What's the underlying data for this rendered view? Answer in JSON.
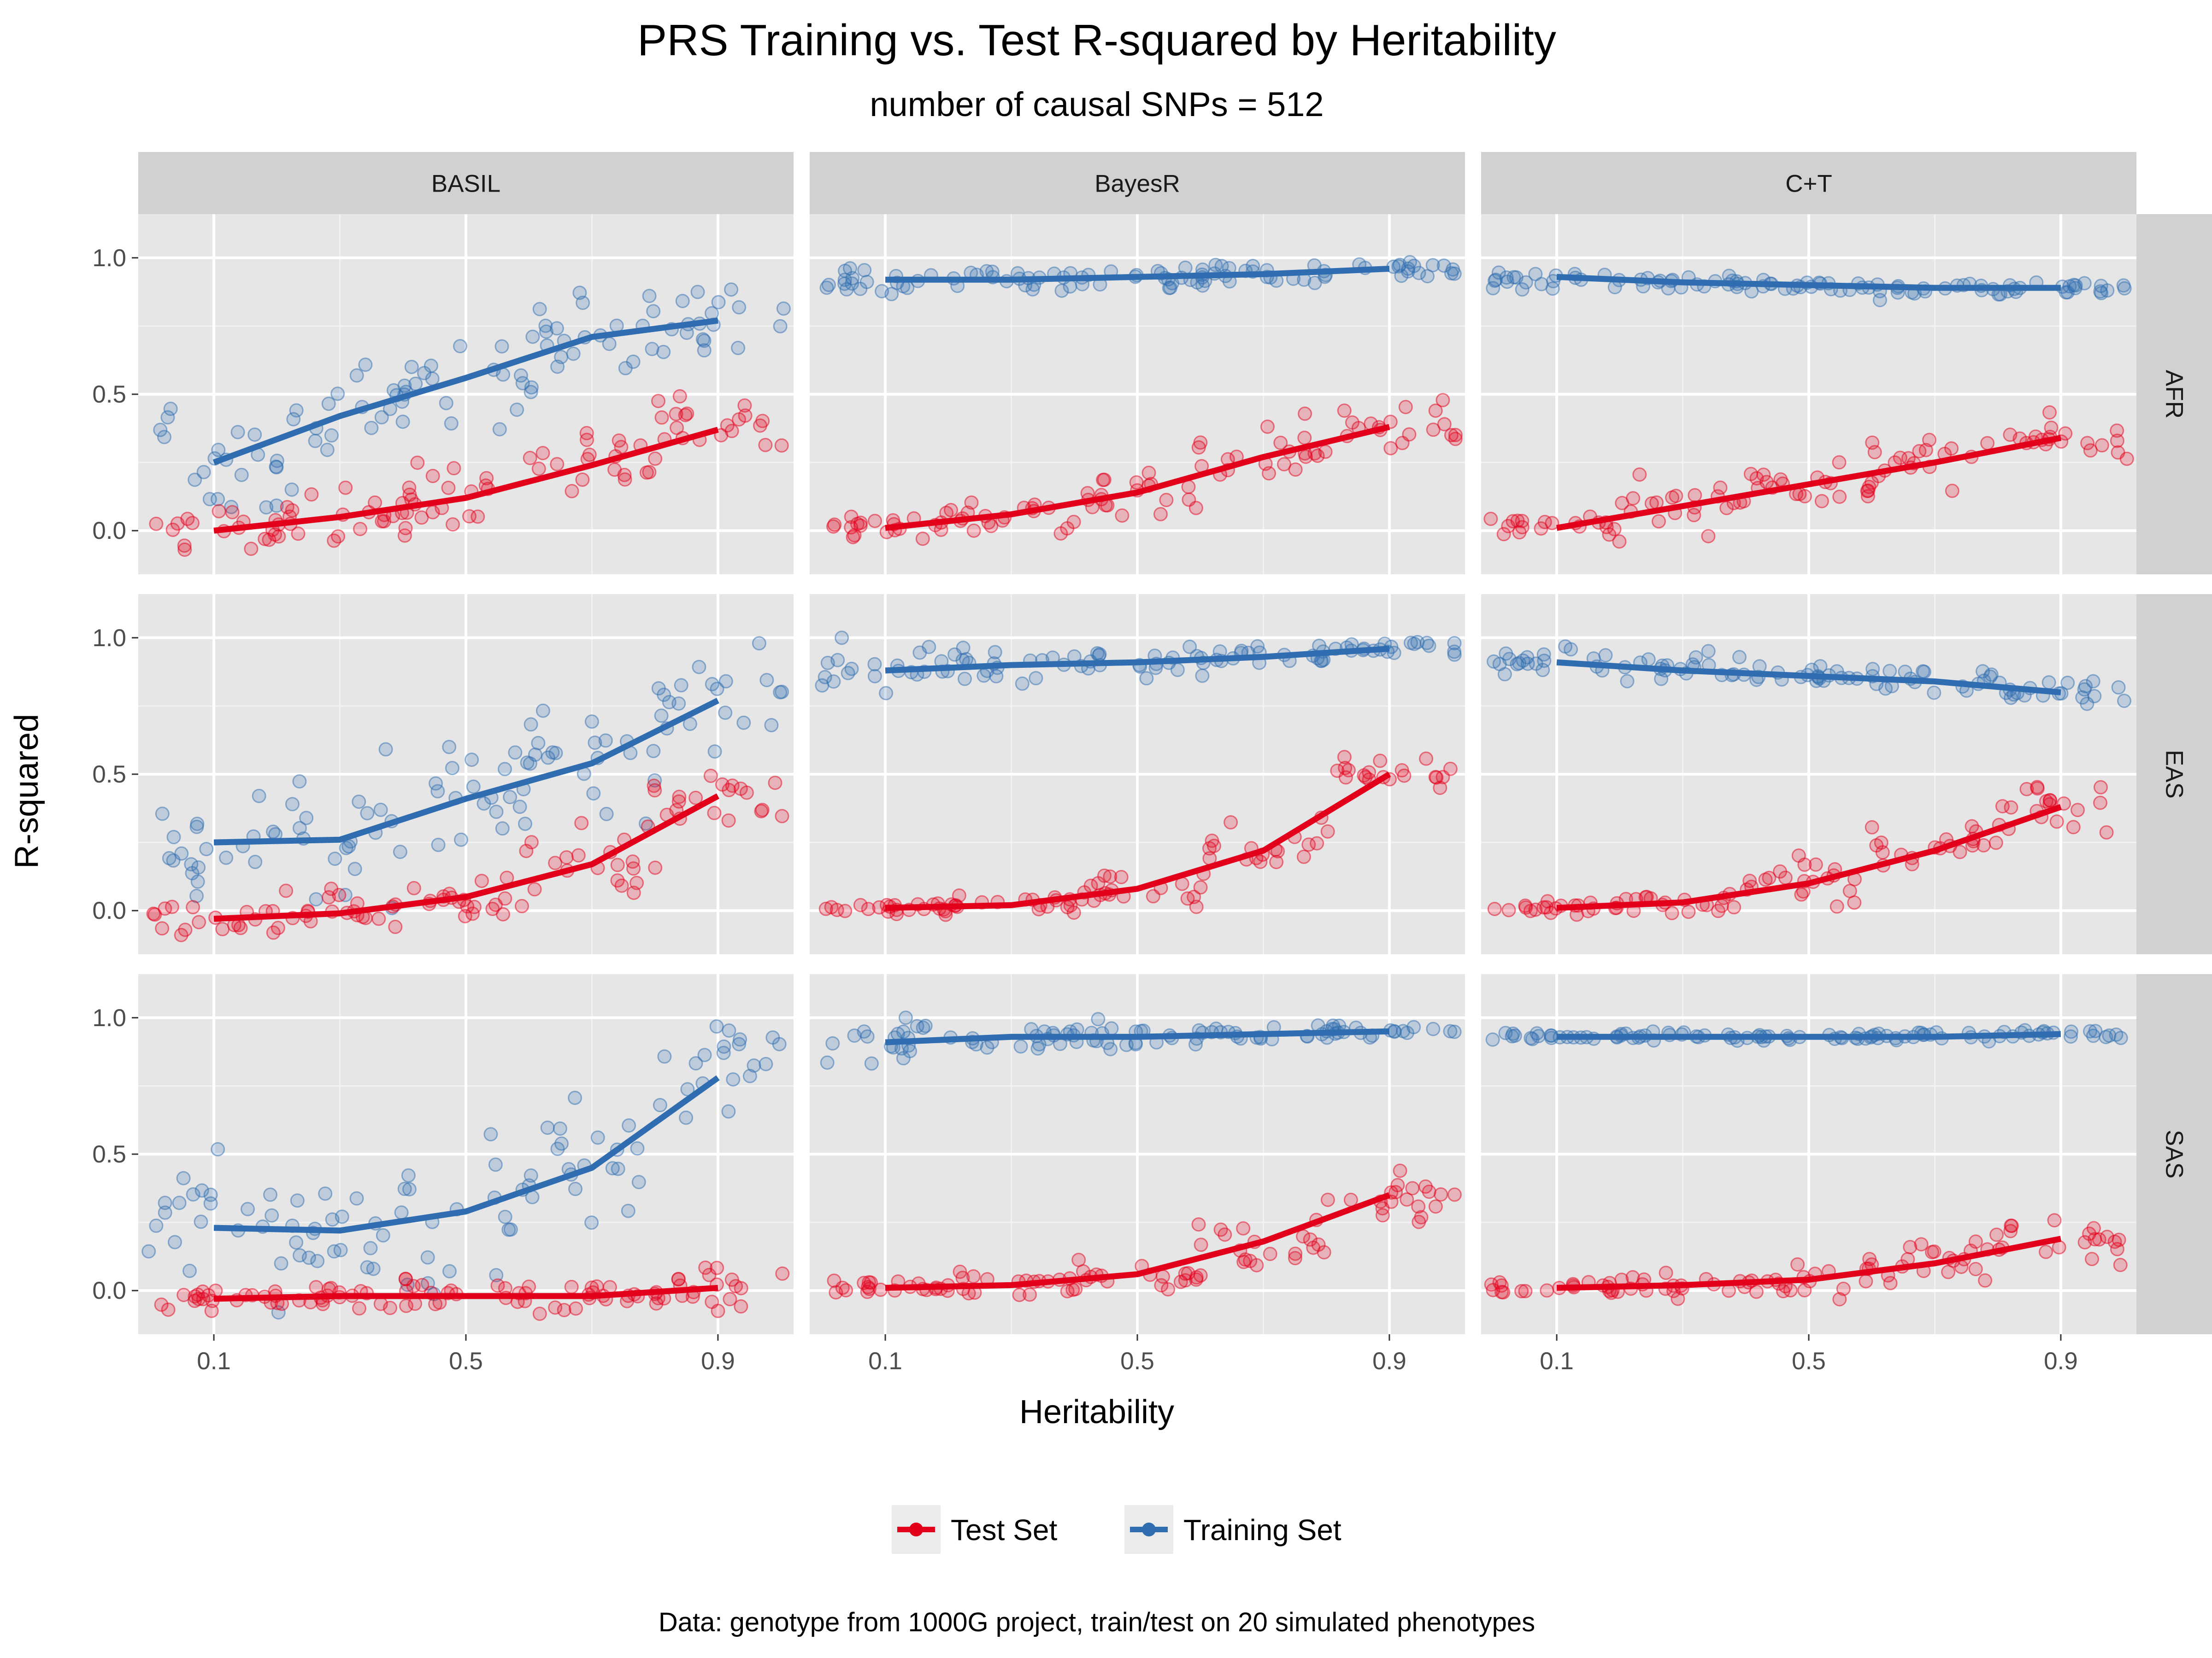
{
  "chart_data": {
    "type": "scatter",
    "title": "PRS Training vs. Test R-squared by Heritability",
    "subtitle": "number of causal SNPs = 512",
    "caption": "Data: genotype from 1000G project, train/test on 20 simulated phenotypes",
    "xlabel": "Heritability",
    "ylabel": "R-squared",
    "xlim": [
      -0.02,
      1.02
    ],
    "ylim": [
      -0.16,
      1.16
    ],
    "x_ticks": [
      "0.1",
      "0.5",
      "0.9"
    ],
    "y_ticks": [
      "0.0",
      "0.5",
      "1.0"
    ],
    "grid": true,
    "legend_position": "bottom",
    "column_facets": [
      "BASIL",
      "BayesR",
      "C+T"
    ],
    "row_facets": [
      "AFR",
      "EAS",
      "SAS"
    ],
    "heritability_levels": [
      0.1,
      0.3,
      0.5,
      0.7,
      0.9
    ],
    "series": [
      {
        "name": "Test Set",
        "color": "#e3001b"
      },
      {
        "name": "Training Set",
        "color": "#2f6db0"
      }
    ],
    "lines": {
      "BASIL": {
        "AFR": {
          "Test Set": [
            0.0,
            0.05,
            0.12,
            0.24,
            0.37
          ],
          "Training Set": [
            0.25,
            0.42,
            0.56,
            0.71,
            0.77
          ]
        },
        "EAS": {
          "Test Set": [
            -0.03,
            -0.01,
            0.05,
            0.17,
            0.42
          ],
          "Training Set": [
            0.25,
            0.26,
            0.41,
            0.54,
            0.77
          ]
        },
        "SAS": {
          "Test Set": [
            -0.03,
            -0.02,
            -0.02,
            -0.02,
            0.01
          ],
          "Training Set": [
            0.23,
            0.22,
            0.29,
            0.45,
            0.78
          ]
        }
      },
      "BayesR": {
        "AFR": {
          "Test Set": [
            0.01,
            0.06,
            0.14,
            0.27,
            0.38
          ],
          "Training Set": [
            0.92,
            0.92,
            0.93,
            0.94,
            0.96
          ]
        },
        "EAS": {
          "Test Set": [
            0.01,
            0.02,
            0.08,
            0.22,
            0.5
          ],
          "Training Set": [
            0.88,
            0.9,
            0.91,
            0.93,
            0.96
          ]
        },
        "SAS": {
          "Test Set": [
            0.01,
            0.02,
            0.06,
            0.18,
            0.35
          ],
          "Training Set": [
            0.91,
            0.93,
            0.93,
            0.94,
            0.95
          ]
        }
      },
      "C+T": {
        "AFR": {
          "Test Set": [
            0.01,
            0.09,
            0.17,
            0.25,
            0.34
          ],
          "Training Set": [
            0.93,
            0.91,
            0.9,
            0.89,
            0.89
          ]
        },
        "EAS": {
          "Test Set": [
            0.01,
            0.03,
            0.1,
            0.22,
            0.38
          ],
          "Training Set": [
            0.91,
            0.88,
            0.86,
            0.84,
            0.8
          ]
        },
        "SAS": {
          "Test Set": [
            0.01,
            0.02,
            0.04,
            0.1,
            0.19
          ],
          "Training Set": [
            0.93,
            0.93,
            0.93,
            0.93,
            0.94
          ]
        }
      }
    },
    "point_spread": {
      "BASIL": {
        "AFR": {
          "Test Set": [
            0.05,
            0.07,
            0.08,
            0.08,
            0.07
          ],
          "Training Set": [
            0.12,
            0.16,
            0.16,
            0.12,
            0.11
          ]
        },
        "EAS": {
          "Test Set": [
            0.04,
            0.05,
            0.07,
            0.08,
            0.06
          ],
          "Training Set": [
            0.13,
            0.17,
            0.17,
            0.15,
            0.13
          ]
        },
        "SAS": {
          "Test Set": [
            0.04,
            0.04,
            0.04,
            0.04,
            0.05
          ],
          "Training Set": [
            0.15,
            0.15,
            0.17,
            0.2,
            0.15
          ]
        }
      },
      "BayesR": {
        "AFR": {
          "Test Set": [
            0.03,
            0.05,
            0.06,
            0.07,
            0.06
          ],
          "Training Set": [
            0.03,
            0.03,
            0.03,
            0.03,
            0.02
          ]
        },
        "EAS": {
          "Test Set": [
            0.02,
            0.03,
            0.05,
            0.08,
            0.06
          ],
          "Training Set": [
            0.06,
            0.04,
            0.04,
            0.03,
            0.02
          ]
        },
        "SAS": {
          "Test Set": [
            0.02,
            0.03,
            0.04,
            0.07,
            0.07
          ],
          "Training Set": [
            0.06,
            0.03,
            0.03,
            0.02,
            0.02
          ]
        }
      },
      "C+T": {
        "AFR": {
          "Test Set": [
            0.03,
            0.05,
            0.06,
            0.06,
            0.06
          ],
          "Training Set": [
            0.03,
            0.02,
            0.02,
            0.02,
            0.02
          ]
        },
        "EAS": {
          "Test Set": [
            0.02,
            0.03,
            0.06,
            0.07,
            0.08
          ],
          "Training Set": [
            0.03,
            0.03,
            0.03,
            0.04,
            0.03
          ]
        },
        "SAS": {
          "Test Set": [
            0.02,
            0.03,
            0.04,
            0.05,
            0.06
          ],
          "Training Set": [
            0.01,
            0.01,
            0.01,
            0.01,
            0.01
          ]
        }
      }
    },
    "points_per_level": 20
  }
}
